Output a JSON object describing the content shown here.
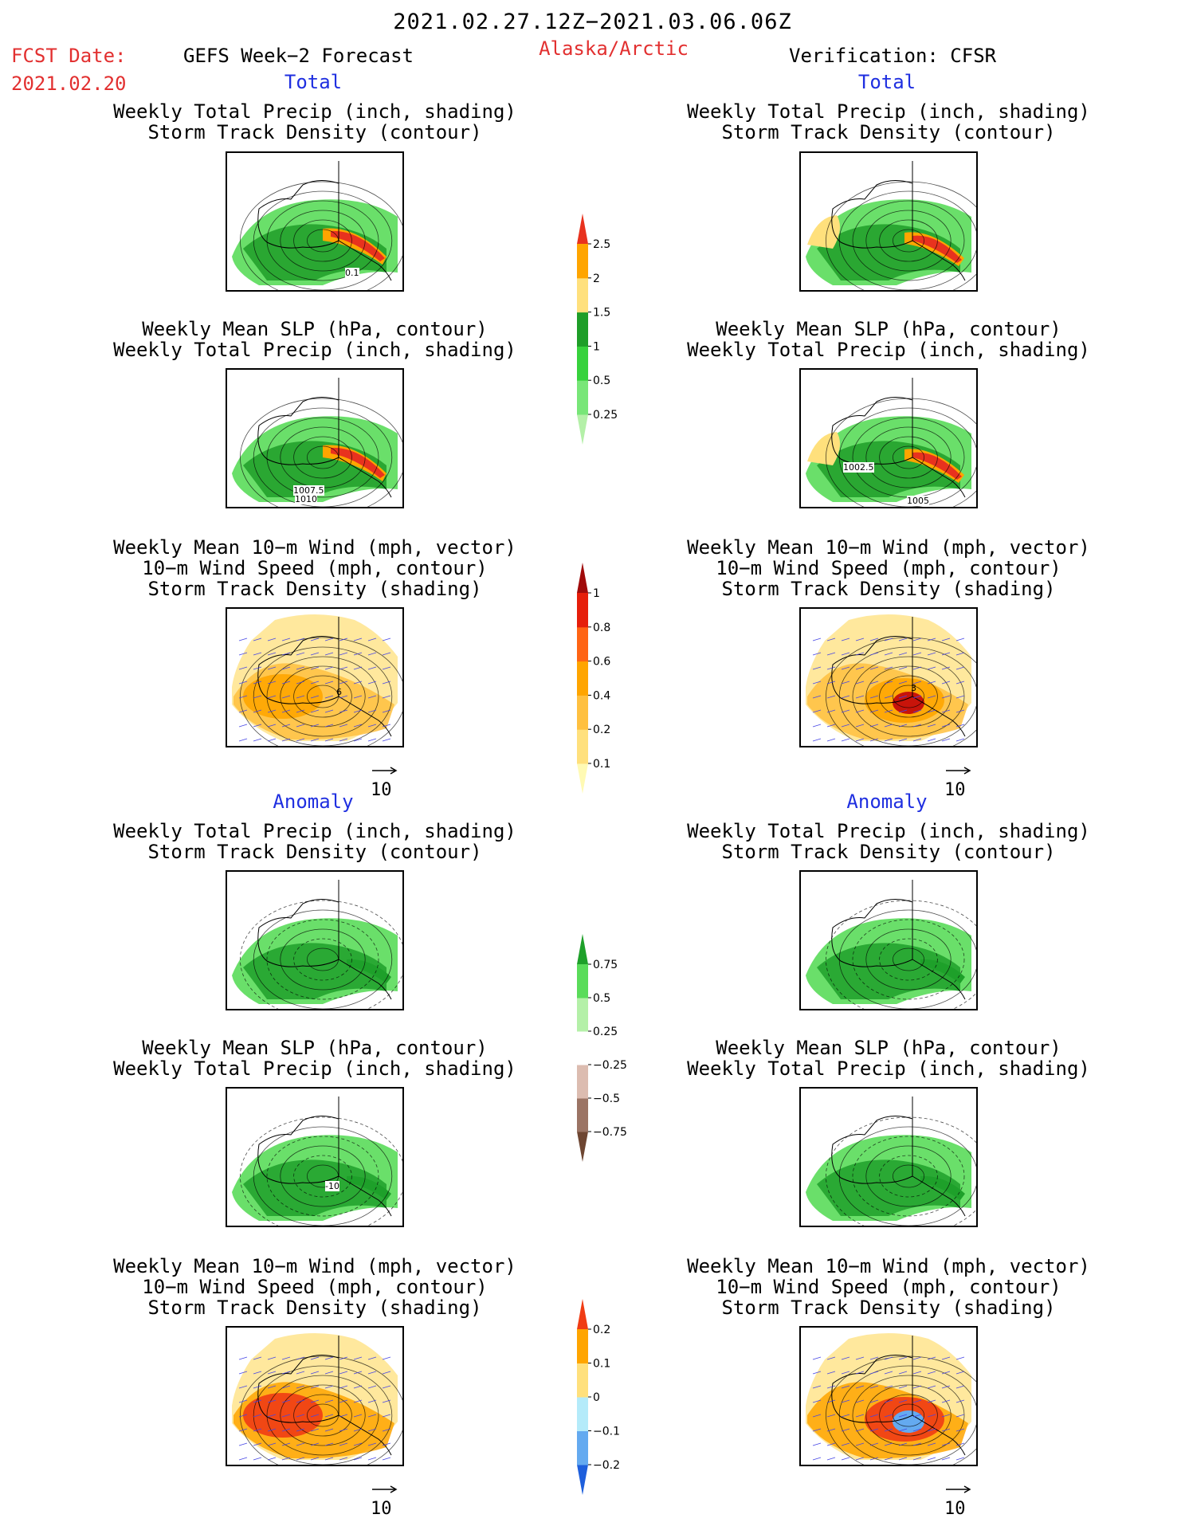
{
  "header": {
    "date_range": "2021.02.27.12Z−2021.03.06.06Z",
    "fcst_label": "FCST Date:",
    "fcst_date": "2021.02.20",
    "left_model": "GEFS Week−2 Forecast",
    "region": "Alaska/Arctic",
    "right_model": "Verification: CFSR"
  },
  "sections": {
    "total": "Total",
    "anomaly": "Anomaly"
  },
  "titles": {
    "precip_track": [
      "Weekly Total Precip (inch, shading)",
      "Storm Track Density (contour)"
    ],
    "slp_precip": [
      "Weekly Mean SLP (hPa, contour)",
      "Weekly Total Precip (inch, shading)"
    ],
    "wind_track": [
      "Weekly Mean 10−m Wind (mph, vector)",
      "10−m Wind Speed (mph, contour)",
      "Storm Track Density (shading)"
    ]
  },
  "contour_labels": {
    "fcst_total_precip": "0.1",
    "fcst_total_slp_a": "1007.5",
    "fcst_total_slp_b": "1010",
    "fcst_total_wind": "6",
    "verif_total_slp_a": "1002.5",
    "verif_total_slp_b": "1005",
    "verif_total_wind": "3",
    "fcst_anom_slp": "-10"
  },
  "wind_reference": "10",
  "colorbars": {
    "precip_total": {
      "colors": [
        "#b4f0a8",
        "#78e678",
        "#37d23c",
        "#1e9e28",
        "#ffe07c",
        "#ffa500",
        "#e8321e"
      ],
      "labels": [
        "0.25",
        "0.5",
        "1",
        "1.5",
        "2",
        "2.5"
      ]
    },
    "track_total": {
      "colors": [
        "#fffab4",
        "#ffe07c",
        "#ffc040",
        "#ffa500",
        "#ff6414",
        "#e61e0a",
        "#a00a0a"
      ],
      "labels": [
        "0.1",
        "0.2",
        "0.4",
        "0.6",
        "0.8",
        "1"
      ]
    },
    "precip_anom": {
      "colors": [
        "#6e4632",
        "#9b7464",
        "#dcbcb0",
        "#ffffff",
        "#b4f0a8",
        "#5adc5a",
        "#1ea02a"
      ],
      "labels": [
        "−0.75",
        "−0.5",
        "−0.25",
        "0.25",
        "0.5",
        "0.75"
      ]
    },
    "track_anom": {
      "colors": [
        "#1e5fdc",
        "#64aaf0",
        "#b4ebfa",
        "#ffe07c",
        "#ffa500",
        "#f03c14"
      ],
      "labels": [
        "−0.2",
        "−0.1",
        "0",
        "0.1",
        "0.2"
      ]
    }
  }
}
